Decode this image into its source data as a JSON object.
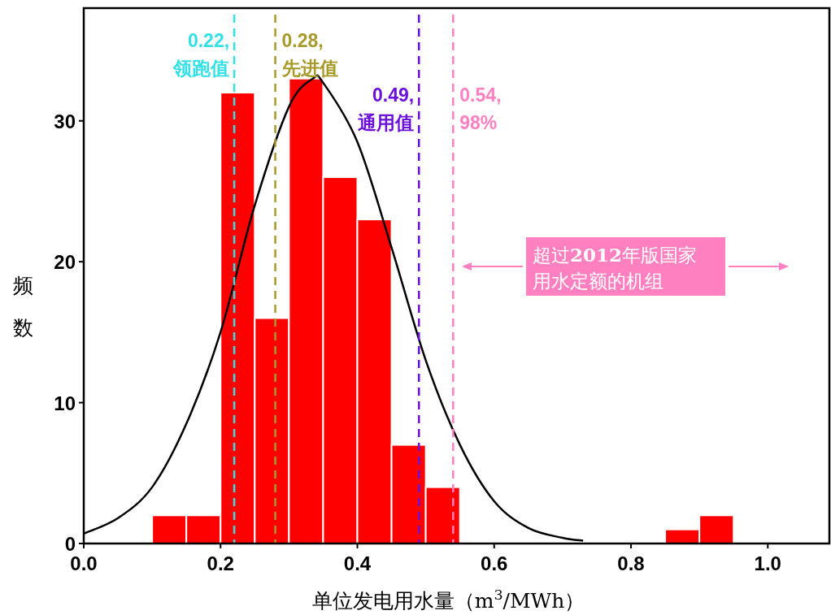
{
  "chart_data": {
    "type": "histogram",
    "xlabel": "单位发电用水量（m$^{3}$/MWh）",
    "ylabel": "频数",
    "bins": [
      0.1,
      0.15,
      0.2,
      0.25,
      0.3,
      0.35,
      0.4,
      0.45,
      0.5,
      0.55,
      0.6,
      0.65,
      0.7,
      0.75,
      0.8,
      0.85,
      0.9,
      0.95
    ],
    "values": [
      2,
      2,
      32,
      16,
      33,
      26,
      23,
      7,
      4,
      0,
      0,
      0,
      0,
      0,
      0,
      1,
      2
    ],
    "color": "#ff0000",
    "series": [
      {
        "type": "line",
        "color": "#000000",
        "x": [
          0,
          0.05,
          0.1,
          0.15,
          0.2,
          0.25,
          0.3,
          0.335,
          0.35,
          0.4,
          0.45,
          0.5,
          0.55,
          0.6,
          0.65,
          0.7,
          0.73
        ],
        "values": [
          0.7,
          1.8,
          4,
          8.5,
          15,
          24,
          31,
          33,
          32.7,
          28.5,
          21,
          13,
          7,
          3,
          1.1,
          0.4,
          0.2
        ]
      }
    ],
    "xlim": [
      0,
      1.09
    ],
    "ylim": [
      0,
      38
    ],
    "xticks": [
      {
        "value": 0,
        "label": "0.0"
      },
      {
        "value": 0.2,
        "label": "0.2"
      },
      {
        "value": 0.4,
        "label": "0.4"
      },
      {
        "value": 0.6,
        "label": "0.6"
      },
      {
        "value": 0.8,
        "label": "0.8"
      },
      {
        "value": 1,
        "label": "1.0"
      }
    ],
    "yticks": [
      0,
      10,
      20,
      30
    ],
    "ref_lines": [
      {
        "axis": "x",
        "value": 0.22,
        "label": "0.22, 领跑值",
        "color": "#33e0e6",
        "line_style": "dashed"
      },
      {
        "axis": "x",
        "value": 0.28,
        "label": "0.28, 先进值",
        "color": "#a89a2a",
        "line_style": "dashed"
      },
      {
        "axis": "x",
        "value": 0.49,
        "label": "0.49, 通用值",
        "color": "#6a10d8",
        "line_style": "dashed"
      },
      {
        "axis": "x",
        "value": 0.54,
        "label": "0.54, 98%",
        "color": "#ff80c0",
        "line_style": "dashed"
      }
    ],
    "annotations": [
      "超过**2012**年版国家用水定额的机组"
    ]
  }
}
